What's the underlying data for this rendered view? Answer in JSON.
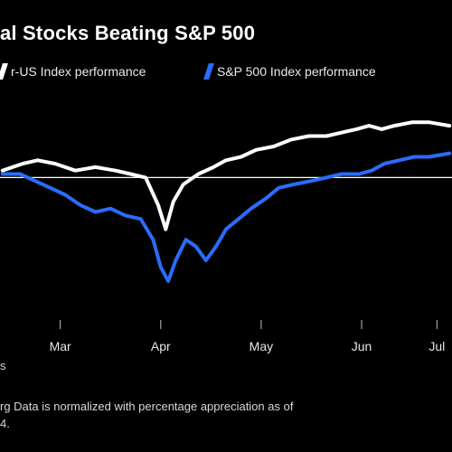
{
  "title": "al Stocks Beating S&P 500",
  "legend": [
    {
      "label": "r-US Index performance",
      "color": "#ffffff"
    },
    {
      "label": "S&P 500 Index performance",
      "color": "#2a6cff"
    }
  ],
  "source_fragment": "s",
  "note_lines": [
    "rg Data is normalized with percentage appreciation as of",
    "4."
  ],
  "chart_data": {
    "type": "line",
    "title": "al Stocks Beating S&P 500",
    "xlabel": "",
    "ylabel": "",
    "x_ticks": [
      "Mar",
      "Apr",
      "May",
      "Jun",
      "Jul"
    ],
    "baseline": 0,
    "grid": false,
    "legend_position": "top",
    "series": [
      {
        "name": "r-US Index performance",
        "color": "#ffffff",
        "points": [
          [
            -0.15,
            2
          ],
          [
            0.25,
            4
          ],
          [
            0.55,
            5
          ],
          [
            0.9,
            4
          ],
          [
            1.3,
            2
          ],
          [
            1.7,
            3
          ],
          [
            2.1,
            2
          ],
          [
            2.4,
            1
          ],
          [
            2.7,
            0
          ],
          [
            2.95,
            -8
          ],
          [
            3.1,
            -15
          ],
          [
            3.25,
            -7
          ],
          [
            3.45,
            -2
          ],
          [
            3.75,
            1
          ],
          [
            4.05,
            3
          ],
          [
            4.3,
            5
          ],
          [
            4.6,
            6
          ],
          [
            4.9,
            8
          ],
          [
            5.25,
            9
          ],
          [
            5.6,
            11
          ],
          [
            5.95,
            12
          ],
          [
            6.3,
            12
          ],
          [
            6.6,
            13
          ],
          [
            6.9,
            14
          ],
          [
            7.15,
            15
          ],
          [
            7.4,
            14
          ],
          [
            7.65,
            15
          ],
          [
            8.0,
            16
          ],
          [
            8.35,
            16
          ],
          [
            8.75,
            15
          ]
        ]
      },
      {
        "name": "S&P 500 Index performance",
        "color": "#2a6cff",
        "points": [
          [
            -0.15,
            1
          ],
          [
            0.2,
            1
          ],
          [
            0.5,
            -1
          ],
          [
            0.8,
            -3
          ],
          [
            1.1,
            -5
          ],
          [
            1.4,
            -8
          ],
          [
            1.7,
            -10
          ],
          [
            2.0,
            -9
          ],
          [
            2.3,
            -11
          ],
          [
            2.6,
            -12
          ],
          [
            2.85,
            -18
          ],
          [
            3.0,
            -26
          ],
          [
            3.15,
            -30
          ],
          [
            3.3,
            -24
          ],
          [
            3.5,
            -18
          ],
          [
            3.7,
            -20
          ],
          [
            3.9,
            -24
          ],
          [
            4.1,
            -20
          ],
          [
            4.3,
            -15
          ],
          [
            4.55,
            -12
          ],
          [
            4.8,
            -9
          ],
          [
            5.1,
            -6
          ],
          [
            5.35,
            -3
          ],
          [
            5.65,
            -2
          ],
          [
            6.0,
            -1
          ],
          [
            6.3,
            0
          ],
          [
            6.6,
            1
          ],
          [
            6.95,
            1
          ],
          [
            7.2,
            2
          ],
          [
            7.45,
            4
          ],
          [
            7.75,
            5
          ],
          [
            8.05,
            6
          ],
          [
            8.35,
            6
          ],
          [
            8.75,
            7
          ]
        ]
      }
    ]
  }
}
